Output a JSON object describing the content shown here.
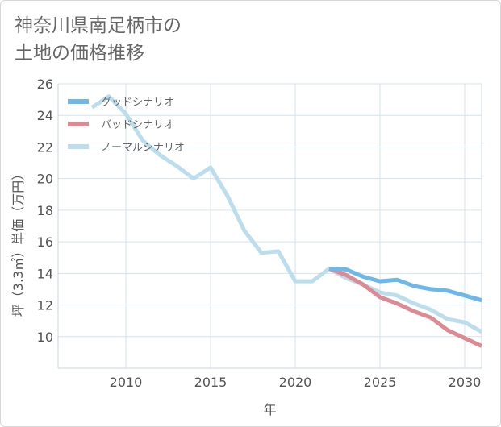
{
  "title_lines": [
    "神奈川県南足柄市の",
    "土地の価格推移"
  ],
  "chart_data": {
    "type": "line",
    "title": "神奈川県南足柄市の土地の価格推移",
    "xlabel": "年",
    "ylabel": "坪（3.3㎡）単価（万円）",
    "xlim": [
      2006,
      2031
    ],
    "ylim": [
      8,
      26
    ],
    "xticks": [
      2010,
      2015,
      2020,
      2025,
      2030
    ],
    "yticks": [
      10,
      12,
      14,
      16,
      18,
      20,
      22,
      24,
      26
    ],
    "grid": true,
    "legend_position": "top-left",
    "series": [
      {
        "name": "グッドシナリオ",
        "color": "#6cb8ea",
        "x": [
          2022,
          2023,
          2024,
          2025,
          2026,
          2027,
          2028,
          2029,
          2030,
          2031
        ],
        "y": [
          14.3,
          14.25,
          13.8,
          13.5,
          13.6,
          13.2,
          13.0,
          12.9,
          12.6,
          12.3
        ]
      },
      {
        "name": "バッドシナリオ",
        "color": "#dd8a94",
        "x": [
          2022,
          2023,
          2024,
          2025,
          2026,
          2027,
          2028,
          2029,
          2030,
          2031
        ],
        "y": [
          14.3,
          13.9,
          13.3,
          12.5,
          12.1,
          11.6,
          11.2,
          10.4,
          9.9,
          9.4
        ]
      },
      {
        "name": "ノーマルシナリオ",
        "color": "#bcdeec",
        "x": [
          2008,
          2009,
          2010,
          2011,
          2012,
          2013,
          2014,
          2015,
          2016,
          2017,
          2018,
          2019,
          2020,
          2021,
          2022,
          2023,
          2024,
          2025,
          2026,
          2027,
          2028,
          2029,
          2030,
          2031
        ],
        "y": [
          24.5,
          25.2,
          24.1,
          22.4,
          21.5,
          20.8,
          20.0,
          20.7,
          18.9,
          16.7,
          15.3,
          15.4,
          13.5,
          13.5,
          14.3,
          13.7,
          13.3,
          12.8,
          12.6,
          12.1,
          11.7,
          11.1,
          10.9,
          10.3
        ]
      }
    ]
  }
}
